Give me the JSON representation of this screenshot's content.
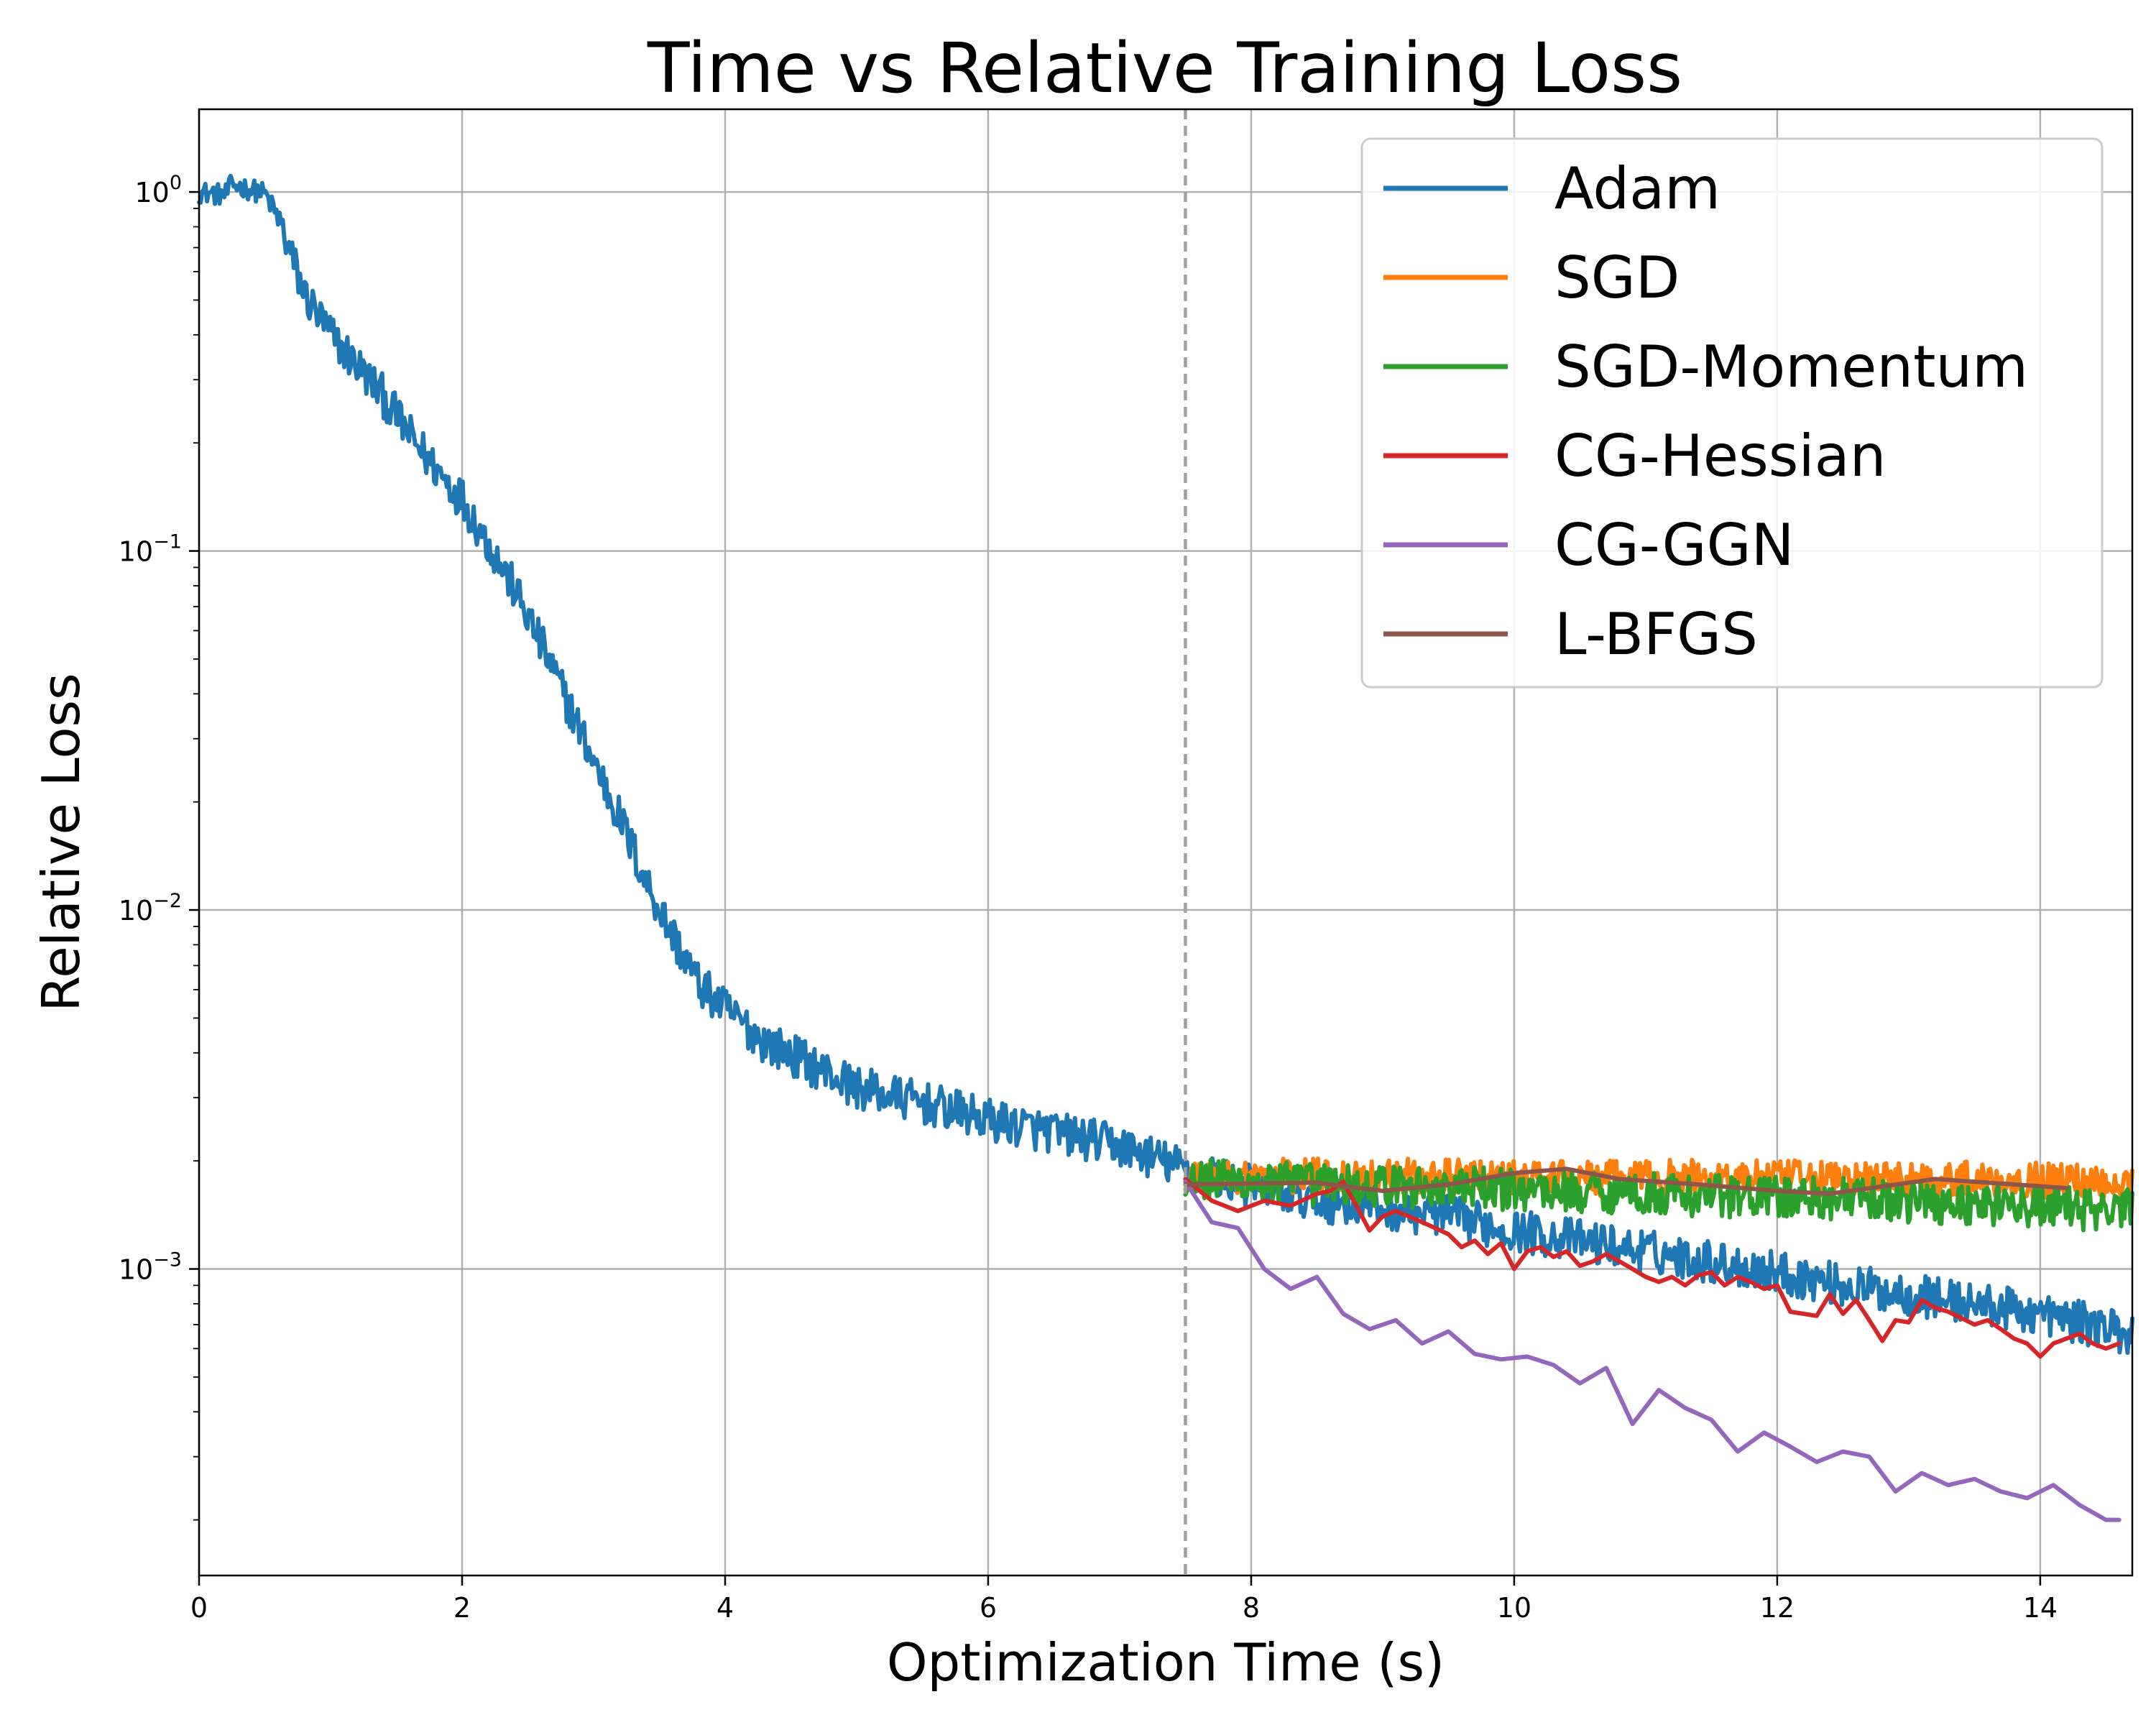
{
  "chart_data": {
    "type": "line",
    "title": "Time vs Relative Training Loss",
    "xlabel": "Optimization Time (s)",
    "ylabel": "Relative Loss",
    "xlim": [
      0,
      14.7
    ],
    "ylim": [
      0.00014,
      1.7
    ],
    "yscale": "log",
    "grid": true,
    "legend_position": "top-right",
    "x_ticks": [
      0,
      2,
      4,
      6,
      8,
      10,
      12,
      14
    ],
    "x_tick_labels": [
      "0",
      "2",
      "4",
      "6",
      "8",
      "10",
      "12",
      "14"
    ],
    "y_ticks": [
      {
        "value": 1,
        "base": "10",
        "exp": "0"
      },
      {
        "value": 0.1,
        "base": "10",
        "exp": "−1"
      },
      {
        "value": 0.01,
        "base": "10",
        "exp": "−2"
      },
      {
        "value": 0.001,
        "base": "10",
        "exp": "−3"
      }
    ],
    "annotations": [
      {
        "type": "vline",
        "x": 7.5,
        "style": "dashed",
        "color": "#a0a0a0"
      }
    ],
    "series": [
      {
        "name": "Adam",
        "color": "#1f77b4",
        "noise": 0.06,
        "x": [
          0,
          0.2,
          0.25,
          0.5,
          0.6,
          0.8,
          1.0,
          1.2,
          1.4,
          1.6,
          1.8,
          2.0,
          2.2,
          2.4,
          2.6,
          2.8,
          3.0,
          3.2,
          3.4,
          3.6,
          3.8,
          4.0,
          4.3,
          4.6,
          5.0,
          5.5,
          6.0,
          6.5,
          7.0,
          7.5,
          8.0,
          8.5,
          9.0,
          9.5,
          10.0,
          10.5,
          11.0,
          11.5,
          12.0,
          12.5,
          13.0,
          13.5,
          14.0,
          14.7
        ],
        "y": [
          1.0,
          0.98,
          1.05,
          0.99,
          0.85,
          0.52,
          0.4,
          0.33,
          0.27,
          0.21,
          0.17,
          0.14,
          0.105,
          0.078,
          0.055,
          0.038,
          0.026,
          0.018,
          0.012,
          0.0085,
          0.0062,
          0.0053,
          0.0043,
          0.0038,
          0.0032,
          0.0029,
          0.0026,
          0.0024,
          0.0022,
          0.0019,
          0.0017,
          0.00155,
          0.00148,
          0.0014,
          0.00128,
          0.0012,
          0.00112,
          0.00105,
          0.00098,
          0.0009,
          0.00085,
          0.0008,
          0.00075,
          0.00066
        ]
      },
      {
        "name": "SGD",
        "color": "#ff7f0e",
        "noise": 0.05,
        "x": [
          7.5,
          8.5,
          9.5,
          10.5,
          11.5,
          12.5,
          13.5,
          14.7
        ],
        "y": [
          0.0018,
          0.00182,
          0.0018,
          0.00178,
          0.0018,
          0.00178,
          0.00178,
          0.00175
        ]
      },
      {
        "name": "SGD-Momentum",
        "color": "#2ca02c",
        "noise": 0.06,
        "x": [
          7.5,
          8.5,
          9.5,
          10.5,
          11.5,
          12.5,
          13.5,
          14.7
        ],
        "y": [
          0.00178,
          0.00172,
          0.00168,
          0.00165,
          0.0016,
          0.00157,
          0.00152,
          0.00145
        ]
      },
      {
        "name": "CG-Hessian",
        "color": "#d62728",
        "noise": 0,
        "x": [
          7.5,
          7.7,
          7.9,
          8.1,
          8.3,
          8.5,
          8.6,
          8.7,
          8.8,
          8.9,
          9.0,
          9.1,
          9.2,
          9.3,
          9.4,
          9.5,
          9.6,
          9.7,
          9.8,
          9.9,
          10.0,
          10.1,
          10.2,
          10.3,
          10.4,
          10.5,
          10.6,
          10.7,
          10.8,
          10.9,
          11.0,
          11.1,
          11.2,
          11.3,
          11.4,
          11.5,
          11.6,
          11.7,
          11.8,
          11.9,
          12.0,
          12.1,
          12.2,
          12.3,
          12.4,
          12.5,
          12.6,
          12.7,
          12.8,
          12.9,
          13.0,
          13.1,
          13.2,
          13.3,
          13.4,
          13.5,
          13.6,
          13.7,
          13.8,
          13.9,
          14.0,
          14.1,
          14.2,
          14.3,
          14.4,
          14.5,
          14.6
        ],
        "y": [
          0.00178,
          0.00155,
          0.00145,
          0.00155,
          0.0015,
          0.00162,
          0.00165,
          0.00175,
          0.0015,
          0.00128,
          0.0014,
          0.00145,
          0.0014,
          0.00135,
          0.0013,
          0.00125,
          0.00115,
          0.0012,
          0.0011,
          0.00118,
          0.001,
          0.00112,
          0.00115,
          0.00108,
          0.00112,
          0.00102,
          0.00105,
          0.0011,
          0.00105,
          0.001,
          0.00095,
          0.00092,
          0.00095,
          0.0009,
          0.00096,
          0.00098,
          0.0009,
          0.00095,
          0.00092,
          0.00088,
          0.0009,
          0.00076,
          0.00075,
          0.00074,
          0.00085,
          0.00075,
          0.00082,
          0.00072,
          0.00063,
          0.00072,
          0.00071,
          0.00082,
          0.00078,
          0.00076,
          0.00073,
          0.0007,
          0.00072,
          0.00068,
          0.00064,
          0.00062,
          0.00057,
          0.00062,
          0.00064,
          0.00066,
          0.00062,
          0.0006,
          0.00062
        ]
      },
      {
        "name": "CG-GGN",
        "color": "#9467bd",
        "noise": 0,
        "x": [
          7.5,
          7.7,
          7.9,
          8.1,
          8.3,
          8.5,
          8.7,
          8.9,
          9.1,
          9.3,
          9.5,
          9.7,
          9.9,
          10.1,
          10.3,
          10.5,
          10.7,
          10.9,
          11.1,
          11.3,
          11.5,
          11.7,
          11.9,
          12.1,
          12.3,
          12.5,
          12.7,
          12.9,
          13.1,
          13.3,
          13.5,
          13.7,
          13.9,
          14.1,
          14.3,
          14.5,
          14.6
        ],
        "y": [
          0.00175,
          0.00135,
          0.0013,
          0.001,
          0.00088,
          0.00095,
          0.00075,
          0.00068,
          0.00072,
          0.00062,
          0.00067,
          0.00058,
          0.00056,
          0.00057,
          0.00054,
          0.00048,
          0.00053,
          0.00037,
          0.00046,
          0.00041,
          0.00038,
          0.00031,
          0.00035,
          0.00032,
          0.00029,
          0.00031,
          0.0003,
          0.00024,
          0.00027,
          0.00025,
          0.00026,
          0.00024,
          0.00023,
          0.00025,
          0.00022,
          0.0002,
          0.0002
        ]
      },
      {
        "name": "L-BFGS",
        "color": "#8c564b",
        "noise": 0,
        "x": [
          7.5,
          8.5,
          8.7,
          9.0,
          9.5,
          10.0,
          10.4,
          10.8,
          11.4,
          12.0,
          12.4,
          13.2,
          13.8,
          14.2
        ],
        "y": [
          0.00172,
          0.00174,
          0.0017,
          0.00165,
          0.00172,
          0.00185,
          0.0019,
          0.00178,
          0.00172,
          0.00165,
          0.00162,
          0.00178,
          0.00172,
          0.00168
        ]
      }
    ]
  }
}
